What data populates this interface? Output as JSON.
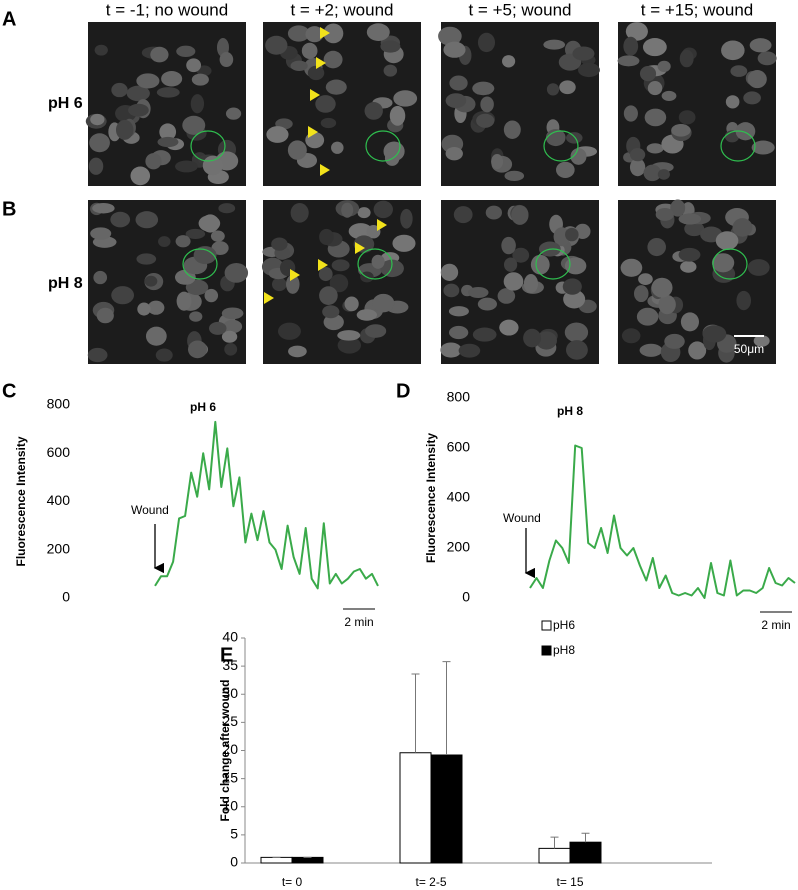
{
  "panel_labels": [
    "A",
    "B",
    "C",
    "D",
    "E"
  ],
  "image_grid": {
    "columns": [
      "t = -1; no wound",
      "t = +2; wound",
      "t = +5; wound",
      "t = +15; wound"
    ],
    "rows": [
      "pH 6",
      "pH 8"
    ],
    "scale_bar": "50μm"
  },
  "chart_data": [
    {
      "type": "line",
      "title": "pH 6",
      "y_label": "Fluorescence Intensity",
      "annotation": "Wound",
      "scale_bar": "2 min",
      "color": "#3aaa4a",
      "ylim": [
        0,
        800
      ],
      "yticks": [
        0,
        200,
        400,
        600,
        800
      ],
      "values": [
        50,
        90,
        90,
        150,
        330,
        340,
        520,
        420,
        600,
        450,
        730,
        460,
        620,
        380,
        500,
        230,
        350,
        240,
        360,
        230,
        200,
        120,
        300,
        170,
        100,
        290,
        80,
        40,
        310,
        60,
        100,
        60,
        80,
        110,
        120,
        80,
        100,
        50
      ]
    },
    {
      "type": "line",
      "title": "pH 8",
      "y_label": "Fluorescence Intensity",
      "annotation": "Wound",
      "scale_bar": "2 min",
      "color": "#3aaa4a",
      "ylim": [
        0,
        800
      ],
      "yticks": [
        0,
        200,
        400,
        600,
        800
      ],
      "values": [
        40,
        80,
        40,
        150,
        230,
        200,
        140,
        610,
        600,
        220,
        200,
        280,
        180,
        330,
        200,
        170,
        200,
        130,
        70,
        160,
        40,
        90,
        20,
        10,
        20,
        10,
        40,
        0,
        140,
        20,
        10,
        150,
        10,
        30,
        30,
        20,
        40,
        120,
        60,
        50,
        80,
        60
      ]
    },
    {
      "type": "bar",
      "y_label": "Fold change after wound",
      "categories": [
        "t= 0",
        "t= 2-5",
        "t= 15"
      ],
      "ylim": [
        0,
        40
      ],
      "yticks": [
        0,
        5,
        10,
        15,
        20,
        25,
        30,
        35,
        40
      ],
      "series": [
        {
          "name": "pH6",
          "color": "#ffffff",
          "values": [
            1,
            19.6,
            2.6
          ],
          "errors": [
            0,
            14,
            2
          ]
        },
        {
          "name": "pH8",
          "color": "#000000",
          "values": [
            1,
            19.2,
            3.7
          ],
          "errors": [
            0,
            16.6,
            1.6
          ]
        }
      ]
    }
  ]
}
